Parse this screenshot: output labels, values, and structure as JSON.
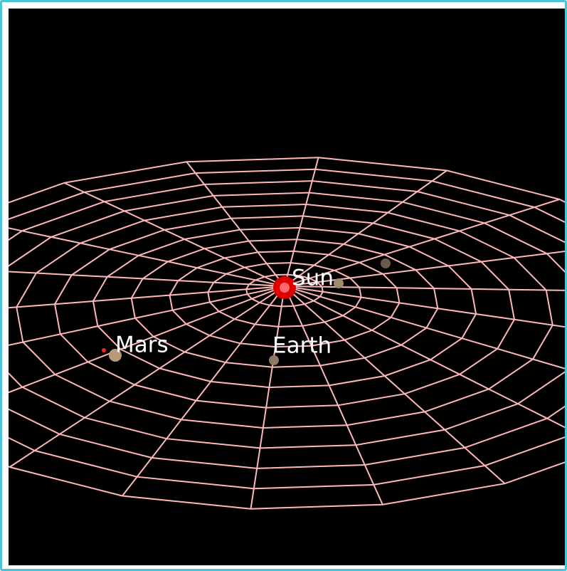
{
  "scene": {
    "labels": [
      "Sun",
      "Mars",
      "Earth"
    ]
  }
}
